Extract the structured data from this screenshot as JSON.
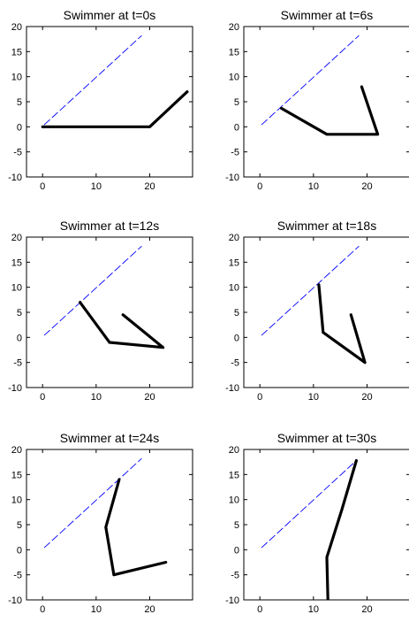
{
  "figure": {
    "axes_color": "#000000",
    "trajectory_color": "#0000ff",
    "swimmer_color": "#000000"
  },
  "chart_data": [
    {
      "type": "line",
      "title": "Swimmer at t=0s",
      "xlim": [
        -3,
        28
      ],
      "ylim": [
        -10,
        20
      ],
      "xticks": [
        0,
        10,
        20
      ],
      "yticks": [
        -10,
        -5,
        0,
        5,
        10,
        15,
        20
      ],
      "series": [
        {
          "role": "trajectory",
          "style": "dashed",
          "x": [
            0.3,
            18.5
          ],
          "y": [
            0.4,
            18.2
          ]
        },
        {
          "role": "swimmer",
          "style": "solid-thick",
          "x": [
            0,
            20,
            27
          ],
          "y": [
            0,
            0,
            7
          ]
        }
      ]
    },
    {
      "type": "line",
      "title": "Swimmer at t=6s",
      "xlim": [
        -3,
        28
      ],
      "ylim": [
        -10,
        20
      ],
      "xticks": [
        0,
        10,
        20
      ],
      "yticks": [
        -10,
        -5,
        0,
        5,
        10,
        15,
        20
      ],
      "series": [
        {
          "role": "trajectory",
          "style": "dashed",
          "x": [
            0.3,
            18.5
          ],
          "y": [
            0.4,
            18.2
          ]
        },
        {
          "role": "swimmer",
          "style": "solid-thick",
          "x": [
            4,
            12.5,
            22,
            19
          ],
          "y": [
            3.7,
            -1.5,
            -1.5,
            8
          ]
        }
      ]
    },
    {
      "type": "line",
      "title": "Swimmer at t=12s",
      "xlim": [
        -3,
        28
      ],
      "ylim": [
        -10,
        20
      ],
      "xticks": [
        0,
        10,
        20
      ],
      "yticks": [
        -10,
        -5,
        0,
        5,
        10,
        15,
        20
      ],
      "series": [
        {
          "role": "trajectory",
          "style": "dashed",
          "x": [
            0.3,
            18.5
          ],
          "y": [
            0.4,
            18.2
          ]
        },
        {
          "role": "swimmer",
          "style": "solid-thick",
          "x": [
            7,
            12.5,
            22.5,
            15
          ],
          "y": [
            7,
            -1,
            -2,
            4.5
          ]
        }
      ]
    },
    {
      "type": "line",
      "title": "Swimmer at t=18s",
      "xlim": [
        -3,
        28
      ],
      "ylim": [
        -10,
        20
      ],
      "xticks": [
        0,
        10,
        20
      ],
      "yticks": [
        -10,
        -5,
        0,
        5,
        10,
        15,
        20
      ],
      "series": [
        {
          "role": "trajectory",
          "style": "dashed",
          "x": [
            0.3,
            18.5
          ],
          "y": [
            0.4,
            18.2
          ]
        },
        {
          "role": "swimmer",
          "style": "solid-thick",
          "x": [
            11,
            11.8,
            19.6,
            17
          ],
          "y": [
            10.5,
            1,
            -5,
            4.5
          ]
        }
      ]
    },
    {
      "type": "line",
      "title": "Swimmer at t=24s",
      "xlim": [
        -3,
        28
      ],
      "ylim": [
        -10,
        20
      ],
      "xticks": [
        0,
        10,
        20
      ],
      "yticks": [
        -10,
        -5,
        0,
        5,
        10,
        15,
        20
      ],
      "series": [
        {
          "role": "trajectory",
          "style": "dashed",
          "x": [
            0.3,
            18.5
          ],
          "y": [
            0.4,
            18.2
          ]
        },
        {
          "role": "swimmer",
          "style": "solid-thick",
          "x": [
            14.3,
            11.8,
            13.3,
            23
          ],
          "y": [
            14,
            4.5,
            -5,
            -2.5
          ]
        }
      ]
    },
    {
      "type": "line",
      "title": "Swimmer at t=30s",
      "xlim": [
        -3,
        28
      ],
      "ylim": [
        -10,
        20
      ],
      "xticks": [
        0,
        10,
        20
      ],
      "yticks": [
        -10,
        -5,
        0,
        5,
        10,
        15,
        20
      ],
      "series": [
        {
          "role": "trajectory",
          "style": "dashed",
          "x": [
            0.3,
            18
          ],
          "y": [
            0.4,
            17.8
          ]
        },
        {
          "role": "swimmer",
          "style": "solid-thick",
          "x": [
            18,
            15.3,
            12.5,
            12.7
          ],
          "y": [
            17.8,
            8,
            -1.5,
            -10
          ]
        }
      ]
    }
  ]
}
